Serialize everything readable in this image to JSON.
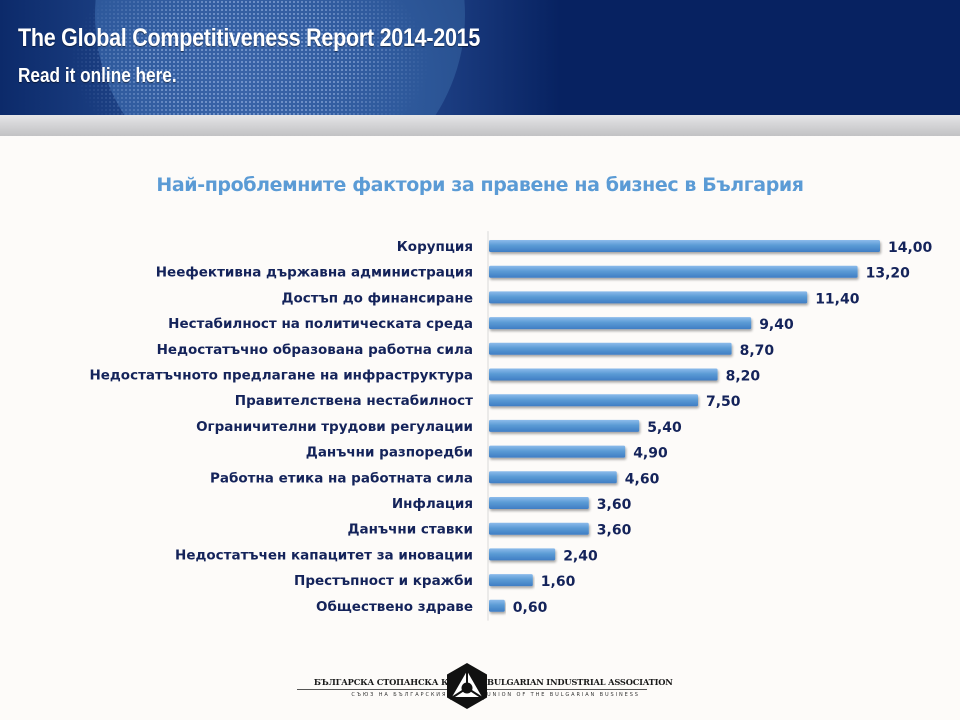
{
  "banner": {
    "title": "The Global Competitiveness Report 2014-2015",
    "link_text": "Read it online here.",
    "background_color": "#072261"
  },
  "chart_data": {
    "type": "bar",
    "orientation": "horizontal",
    "title": "Най-проблемните фактори за правене на бизнес в България",
    "xlabel": "",
    "ylabel": "",
    "xlim": [
      0,
      14
    ],
    "grid": false,
    "legend": "none",
    "bar_color": "#5B9BD5",
    "categories": [
      "Корупция",
      "Неефективна държавна администрация",
      "Достъп до финансиране",
      "Нестабилност на политическата среда",
      "Недостатъчно образована работна сила",
      "Недостатъчното предлагане на инфраструктура",
      "Правителствена нестабилност",
      "Ограничителни трудови регулации",
      "Данъчни разпоредби",
      "Работна етика на работната сила",
      "Инфлация",
      "Данъчни ставки",
      "Недостатъчен капацитет за иновации",
      "Престъпност и кражби",
      "Обществено здраве"
    ],
    "values": [
      14.0,
      13.2,
      11.4,
      9.4,
      8.7,
      8.2,
      7.5,
      5.4,
      4.9,
      4.6,
      3.6,
      3.6,
      2.4,
      1.6,
      0.6
    ],
    "value_labels": [
      "14,00",
      "13,20",
      "11,40",
      "9,40",
      "8,70",
      "8,20",
      "7,50",
      "5,40",
      "4,90",
      "4,60",
      "3,60",
      "3,60",
      "2,40",
      "1,60",
      "0,60"
    ]
  },
  "footer": {
    "org_bg_name": "БЪЛГАРСКА СТОПАНСКА КАМАРА",
    "org_bg_subtitle": "СЪЮЗ НА БЪЛГАРСКИЯ БИЗНЕС",
    "org_en_name": "BULGARIAN INDUSTRIAL ASSOCIATION",
    "org_en_subtitle": "UNION OF THE BULGARIAN BUSINESS",
    "logo_icon": "hexagon-triangle-logo-icon"
  }
}
